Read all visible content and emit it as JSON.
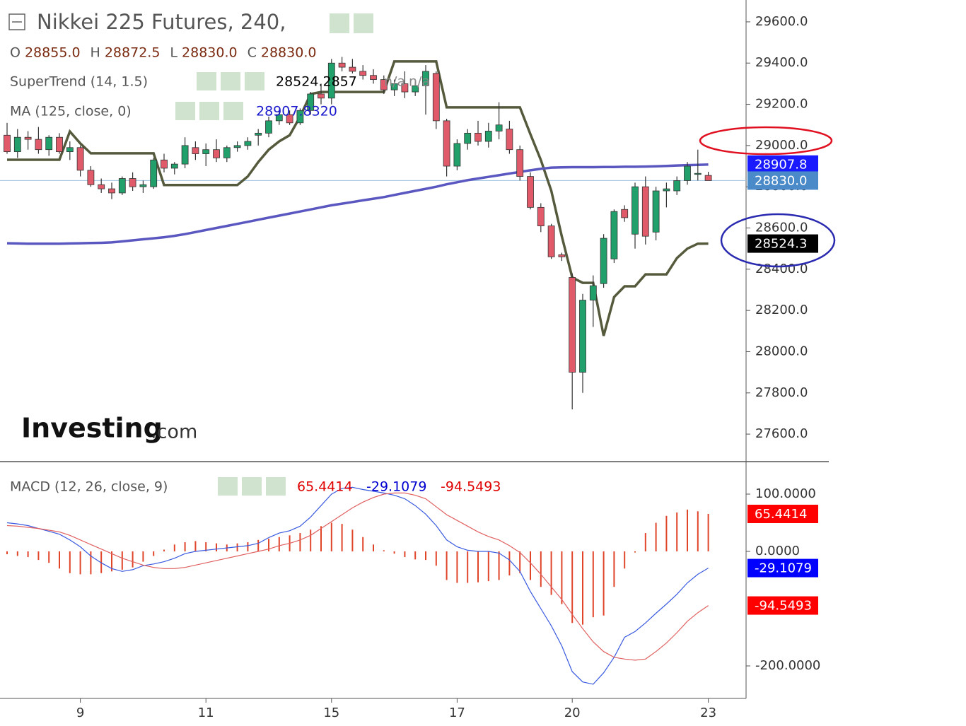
{
  "header": {
    "title": "Nikkei 225 Futures, 240,",
    "ohlc": [
      {
        "label": "O",
        "value": "28855.0"
      },
      {
        "label": "H",
        "value": "28872.5"
      },
      {
        "label": "L",
        "value": "28830.0"
      },
      {
        "label": "C",
        "value": "28830.0"
      }
    ],
    "watermark_brand": "Investing",
    "watermark_suffix": ".com"
  },
  "chart_data": [
    {
      "type": "candlestick",
      "categories": [
        null,
        null,
        null,
        null,
        null,
        null,
        null,
        "9",
        null,
        null,
        null,
        null,
        null,
        null,
        null,
        null,
        null,
        null,
        null,
        "11",
        null,
        null,
        null,
        null,
        null,
        null,
        null,
        null,
        null,
        null,
        null,
        "15",
        null,
        null,
        null,
        null,
        null,
        null,
        null,
        null,
        null,
        null,
        null,
        "17",
        null,
        null,
        null,
        null,
        null,
        null,
        null,
        null,
        null,
        null,
        "20",
        null,
        null,
        null,
        null,
        null,
        null,
        null,
        null,
        null,
        null,
        null,
        null,
        "23"
      ],
      "ohlc": {
        "open": [
          29050,
          28970,
          29040,
          29030,
          28980,
          29040,
          28970,
          28990,
          28880,
          28810,
          28790,
          28770,
          28840,
          28800,
          28800,
          28930,
          28890,
          28910,
          28990,
          28960,
          28980,
          28940,
          28990,
          29000,
          29050,
          29060,
          29120,
          29150,
          29110,
          29170,
          29250,
          29230,
          29400,
          29380,
          29360,
          29340,
          29320,
          29270,
          29300,
          29260,
          29290,
          29350,
          29120,
          28900,
          29010,
          29060,
          29020,
          29070,
          29080,
          28980,
          28850,
          28700,
          28610,
          28470,
          28360,
          27900,
          28250,
          28330,
          28450,
          28690,
          28570,
          28800,
          28580,
          28780,
          28780,
          28830,
          28860,
          28855
        ],
        "high": [
          29110,
          29080,
          29070,
          29090,
          29050,
          29060,
          29020,
          29000,
          28900,
          28840,
          28820,
          28850,
          28870,
          28830,
          28940,
          28960,
          28920,
          29040,
          29020,
          29010,
          29030,
          29000,
          29020,
          29040,
          29080,
          29140,
          29170,
          29170,
          29180,
          29260,
          29300,
          29420,
          29430,
          29420,
          29390,
          29370,
          29340,
          29320,
          29360,
          29310,
          29390,
          29360,
          29130,
          29030,
          29080,
          29120,
          29110,
          29210,
          29120,
          29000,
          28870,
          28720,
          28620,
          28480,
          28380,
          28280,
          28370,
          28570,
          28690,
          28710,
          28820,
          28850,
          28800,
          28820,
          28850,
          28920,
          28980,
          28872.5
        ],
        "low": [
          28960,
          28940,
          28980,
          28960,
          28950,
          28960,
          28930,
          28850,
          28800,
          28770,
          28740,
          28760,
          28780,
          28770,
          28790,
          28870,
          28860,
          28890,
          28930,
          28900,
          28920,
          28920,
          28970,
          28980,
          29000,
          29040,
          29100,
          29100,
          29100,
          29150,
          29200,
          29200,
          29360,
          29350,
          29320,
          29300,
          29250,
          29240,
          29230,
          29240,
          29150,
          29080,
          28850,
          28880,
          28980,
          29000,
          28990,
          29030,
          28960,
          28830,
          28690,
          28580,
          28450,
          28440,
          27720,
          27800,
          28120,
          28310,
          28430,
          28630,
          28500,
          28520,
          28540,
          28700,
          28760,
          28810,
          28830,
          28830
        ],
        "close": [
          28970,
          29040,
          29030,
          28980,
          29040,
          28970,
          28990,
          28880,
          28810,
          28790,
          28770,
          28840,
          28800,
          28810,
          28930,
          28890,
          28910,
          29000,
          28960,
          28980,
          28940,
          28990,
          29000,
          29020,
          29060,
          29120,
          29150,
          29110,
          29170,
          29250,
          29230,
          29400,
          29380,
          29360,
          29340,
          29320,
          29270,
          29300,
          29260,
          29290,
          29360,
          29120,
          28900,
          29010,
          29060,
          29020,
          29070,
          29100,
          28980,
          28850,
          28700,
          28610,
          28460,
          28460,
          27900,
          28250,
          28320,
          28550,
          28680,
          28650,
          28800,
          28560,
          28780,
          28790,
          28830,
          28900,
          28865,
          28830
        ],
        "up_color": "#22a06b",
        "down_color": "#e05a6a"
      },
      "series": [
        {
          "name": "SuperTrend (14, 1.5)",
          "color": "#565a3c",
          "legend_value": "28524.2857",
          "legend_extra": [
            "n/a",
            "n/a"
          ],
          "values": [
            28931,
            28931,
            28931,
            28931,
            28931,
            28931,
            29068,
            29010,
            28962,
            28962,
            28962,
            28962,
            28962,
            28962,
            28962,
            28808,
            28808,
            28808,
            28808,
            28808,
            28808,
            28808,
            28808,
            28850,
            28920,
            28980,
            29020,
            29050,
            29140,
            29250,
            29260,
            29260,
            29260,
            29260,
            29260,
            29260,
            29260,
            29408,
            29408,
            29408,
            29408,
            29408,
            29185,
            29185,
            29185,
            29185,
            29185,
            29185,
            29185,
            29185,
            29055,
            28930,
            28780,
            28560,
            28360,
            28334,
            28334,
            28077,
            28265,
            28317,
            28317,
            28375,
            28375,
            28375,
            28454,
            28500,
            28524,
            28524.2857
          ]
        },
        {
          "name": "MA (125, close, 0)",
          "color": "#5a58c0",
          "legend_value": "28907.8320",
          "values": [
            28526,
            28525,
            28524,
            28524,
            28524,
            28524,
            28525,
            28526,
            28527,
            28528,
            28530,
            28535,
            28540,
            28545,
            28550,
            28555,
            28562,
            28570,
            28580,
            28590,
            28600,
            28610,
            28620,
            28630,
            28640,
            28650,
            28660,
            28670,
            28680,
            28690,
            28700,
            28710,
            28718,
            28726,
            28734,
            28742,
            28750,
            28760,
            28770,
            28780,
            28790,
            28800,
            28812,
            28822,
            28832,
            28840,
            28848,
            28856,
            28864,
            28872,
            28880,
            28887,
            28893,
            28894,
            28895,
            28895,
            28895,
            28896,
            28896,
            28897,
            28897,
            28898,
            28899,
            28901,
            28903,
            28905,
            28906,
            28907.832
          ]
        }
      ],
      "price_tags": [
        {
          "value": 28907.8,
          "label": "28907.8",
          "color": "#1a1aff"
        },
        {
          "value": 28830.0,
          "label": "28830.0",
          "color": "#4a8ac8"
        },
        {
          "value": 28524.3,
          "label": "28524.3",
          "color": "#000000"
        }
      ],
      "ylim": [
        27470,
        29706
      ],
      "yticks": [
        {
          "value": 27600,
          "label": "27600.0"
        },
        {
          "value": 27800,
          "label": "27800.0"
        },
        {
          "value": 28000,
          "label": "28000.0"
        },
        {
          "value": 28200,
          "label": "28200.0"
        },
        {
          "value": 28400,
          "label": "28400.0"
        },
        {
          "value": 28600,
          "label": "28600.0"
        },
        {
          "value": 28800,
          "label": "28800.0"
        },
        {
          "value": 29000,
          "label": "29000.0"
        },
        {
          "value": 29200,
          "label": "29200.0"
        },
        {
          "value": 29400,
          "label": "29400.0"
        },
        {
          "value": 29600,
          "label": "29600.0"
        }
      ]
    },
    {
      "type": "macd",
      "title": "MACD (12, 26, close, 9)",
      "series": [
        {
          "type": "bar",
          "color": "#e0452a",
          "legend_value": "65.4414",
          "values": [
            -5,
            -8,
            -10,
            -15,
            -20,
            -30,
            -38,
            -40,
            -40,
            -38,
            -35,
            -32,
            -28,
            -18,
            -8,
            3,
            12,
            16,
            18,
            16,
            14,
            12,
            14,
            16,
            20,
            22,
            25,
            28,
            32,
            38,
            44,
            50,
            48,
            38,
            25,
            12,
            2,
            -4,
            -10,
            -14,
            -15,
            -25,
            -50,
            -55,
            -55,
            -54,
            -52,
            -50,
            -42,
            -38,
            -50,
            -62,
            -76,
            -92,
            -125,
            -128,
            -115,
            -112,
            -62,
            -30,
            -2,
            32,
            50,
            62,
            68,
            73,
            70,
            65.4414
          ]
        },
        {
          "type": "line",
          "color": "#3a5ae0",
          "legend_value": "-29.1079",
          "values": [
            50,
            48,
            45,
            40,
            35,
            30,
            20,
            8,
            -8,
            -20,
            -30,
            -35,
            -32,
            -25,
            -22,
            -18,
            -12,
            -4,
            0,
            2,
            4,
            6,
            8,
            10,
            14,
            24,
            32,
            36,
            44,
            60,
            80,
            100,
            110,
            112,
            108,
            105,
            102,
            98,
            92,
            80,
            65,
            45,
            20,
            8,
            2,
            0,
            0,
            -3,
            -15,
            -35,
            -70,
            -100,
            -130,
            -165,
            -210,
            -228,
            -232,
            -212,
            -185,
            -150,
            -140,
            -125,
            -108,
            -92,
            -75,
            -55,
            -40,
            -29.1079
          ]
        },
        {
          "type": "line",
          "color": "#e06060",
          "legend_value": "-94.5493",
          "values": [
            45,
            44,
            42,
            40,
            37,
            34,
            28,
            20,
            12,
            4,
            -4,
            -12,
            -18,
            -24,
            -28,
            -30,
            -30,
            -28,
            -24,
            -20,
            -16,
            -12,
            -8,
            -4,
            0,
            4,
            10,
            14,
            20,
            28,
            40,
            52,
            64,
            76,
            86,
            94,
            100,
            102,
            102,
            98,
            92,
            78,
            64,
            54,
            44,
            34,
            26,
            20,
            10,
            -2,
            -20,
            -40,
            -62,
            -84,
            -110,
            -135,
            -158,
            -175,
            -185,
            -188,
            -190,
            -188,
            -175,
            -160,
            -142,
            -122,
            -107,
            -94.5493
          ]
        }
      ],
      "price_tags": [
        {
          "value": 65.4414,
          "label": "65.4414",
          "color": "#ff0000"
        },
        {
          "value": -29.1079,
          "label": "-29.1079",
          "color": "#0000ff"
        },
        {
          "value": -94.5493,
          "label": "-94.5493",
          "color": "#ff0000"
        }
      ],
      "ylim": [
        -256.8,
        154.3
      ],
      "yticks": [
        {
          "value": 100,
          "label": "100.0000"
        },
        {
          "value": 0,
          "label": "0.0000"
        },
        {
          "value": -200,
          "label": "-200.0000"
        }
      ]
    }
  ]
}
